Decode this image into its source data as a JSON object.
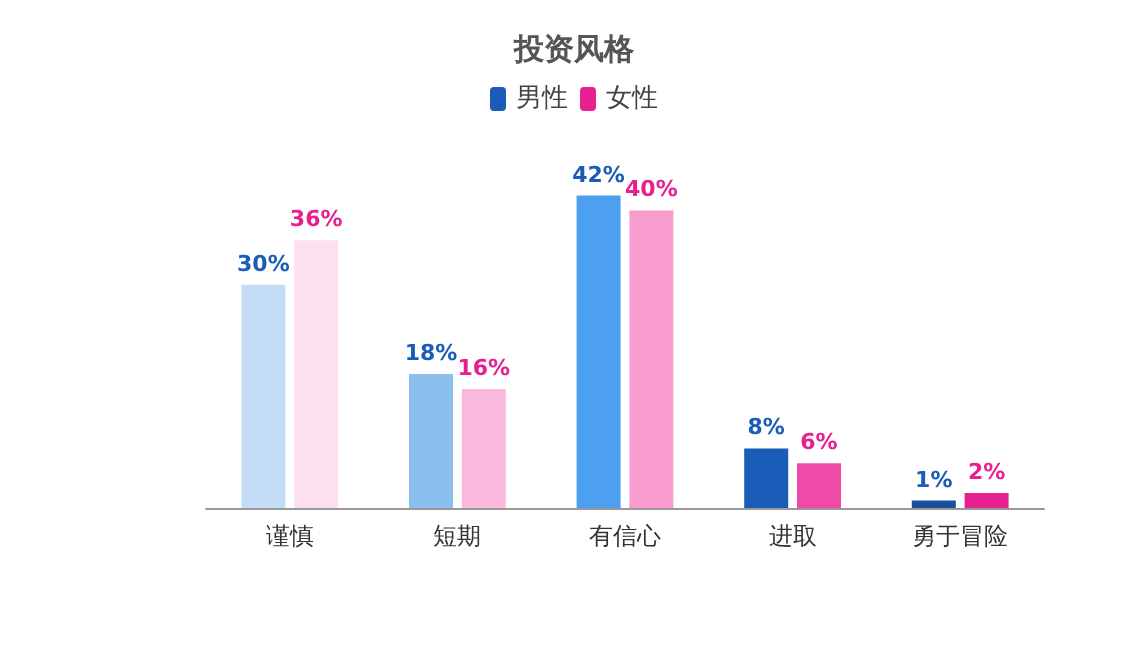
{
  "chart_data": {
    "type": "bar",
    "title": "投资风格",
    "categories": [
      "谨慎",
      "短期",
      "有信心",
      "进取",
      "勇于冒险"
    ],
    "legend": "top",
    "series": [
      {
        "name": "男性",
        "color": "#1a5cb8",
        "colors": [
          "#c4dcf6",
          "#8cbff0",
          "#4d9ff0",
          "#1a5cb8",
          "#1a4f9e"
        ],
        "values": [
          30,
          18,
          42,
          8,
          1
        ],
        "value_labels": [
          "30%",
          "18%",
          "42%",
          "8%",
          "1%"
        ]
      },
      {
        "name": "女性",
        "color": "#e8208f",
        "colors": [
          "#fde0ef",
          "#fbb9dd",
          "#f89bcf",
          "#f04aa8",
          "#e8208f"
        ],
        "values": [
          36,
          16,
          40,
          6,
          2
        ],
        "value_labels": [
          "36%",
          "16%",
          "40%",
          "6%",
          "2%"
        ]
      }
    ]
  }
}
